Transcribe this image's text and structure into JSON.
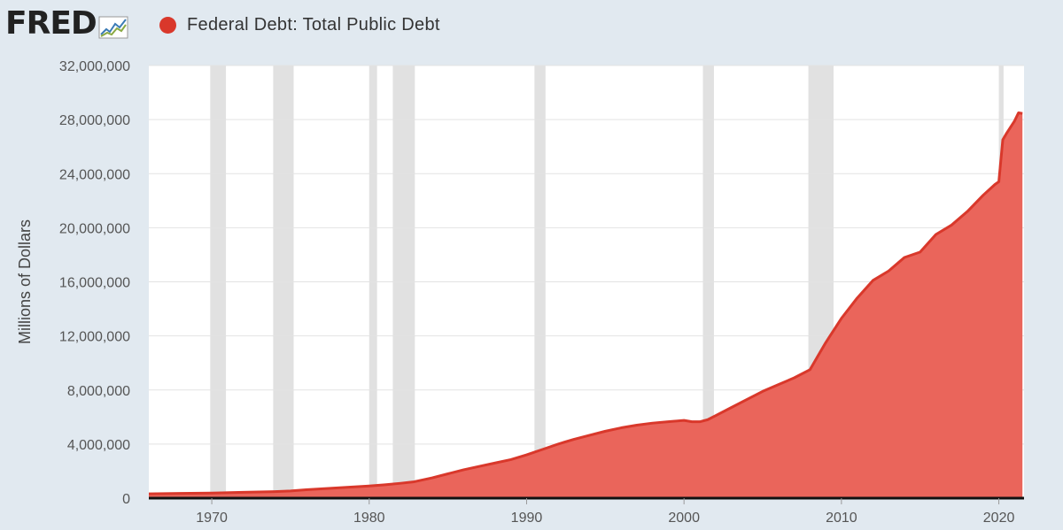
{
  "brand": {
    "logo_text": "FRED",
    "logo_icon": "chart-line-icon"
  },
  "colors": {
    "series": "#d9382b",
    "area": "#ea655b",
    "recession": "#e1e1e1",
    "grid": "#e3e3e3",
    "background": "#e1e9f0",
    "plot_bg": "#ffffff"
  },
  "chart_data": {
    "type": "area",
    "title": "",
    "xlabel": "",
    "ylabel": "Millions of Dollars",
    "legend": {
      "position": "top-left"
    },
    "grid": true,
    "xlim": [
      1966.0,
      2021.6
    ],
    "ylim": [
      0,
      32000000
    ],
    "x_ticks": [
      1970,
      1980,
      1990,
      2000,
      2010,
      2020
    ],
    "x_tick_labels": [
      "1970",
      "1980",
      "1990",
      "2000",
      "2010",
      "2020"
    ],
    "y_ticks": [
      0,
      4000000,
      8000000,
      12000000,
      16000000,
      20000000,
      24000000,
      28000000,
      32000000
    ],
    "y_tick_labels": [
      "0",
      "4,000,000",
      "8,000,000",
      "12,000,000",
      "16,000,000",
      "20,000,000",
      "24,000,000",
      "28,000,000",
      "32,000,000"
    ],
    "recessions": [
      [
        1969.9,
        1970.9
      ],
      [
        1973.9,
        1975.2
      ],
      [
        1980.0,
        1980.5
      ],
      [
        1981.5,
        1982.9
      ],
      [
        1990.5,
        1991.2
      ],
      [
        2001.2,
        2001.9
      ],
      [
        2007.9,
        2009.5
      ],
      [
        2020.0,
        2020.3
      ]
    ],
    "series": [
      {
        "name": "Federal Debt: Total Public Debt",
        "x": [
          1966.0,
          1968,
          1970,
          1972,
          1974,
          1975,
          1976,
          1978,
          1980,
          1981,
          1982,
          1982.8,
          1984,
          1985,
          1986,
          1987,
          1988,
          1989,
          1990,
          1991,
          1992,
          1993,
          1994,
          1995,
          1996,
          1997,
          1998,
          1999,
          2000,
          2000.5,
          2001,
          2001.5,
          2002,
          2003,
          2004,
          2005,
          2006,
          2007,
          2008,
          2008.5,
          2009,
          2010,
          2011,
          2012,
          2013,
          2014,
          2015,
          2016,
          2017,
          2018,
          2019,
          2019.75,
          2020.0,
          2020.25,
          2020.5,
          2021.0,
          2021.25,
          2021.5
        ],
        "y": [
          320000,
          350000,
          380000,
          430000,
          480000,
          530000,
          620000,
          760000,
          900000,
          990000,
          1100000,
          1200000,
          1500000,
          1800000,
          2100000,
          2350000,
          2600000,
          2850000,
          3200000,
          3600000,
          4000000,
          4350000,
          4650000,
          4950000,
          5200000,
          5400000,
          5550000,
          5650000,
          5750000,
          5650000,
          5650000,
          5800000,
          6100000,
          6700000,
          7300000,
          7900000,
          8400000,
          8900000,
          9500000,
          10500000,
          11500000,
          13300000,
          14800000,
          16100000,
          16800000,
          17800000,
          18200000,
          19500000,
          20200000,
          21200000,
          22400000,
          23200000,
          23400000,
          26500000,
          27000000,
          27900000,
          28500000,
          28450000
        ]
      }
    ]
  }
}
